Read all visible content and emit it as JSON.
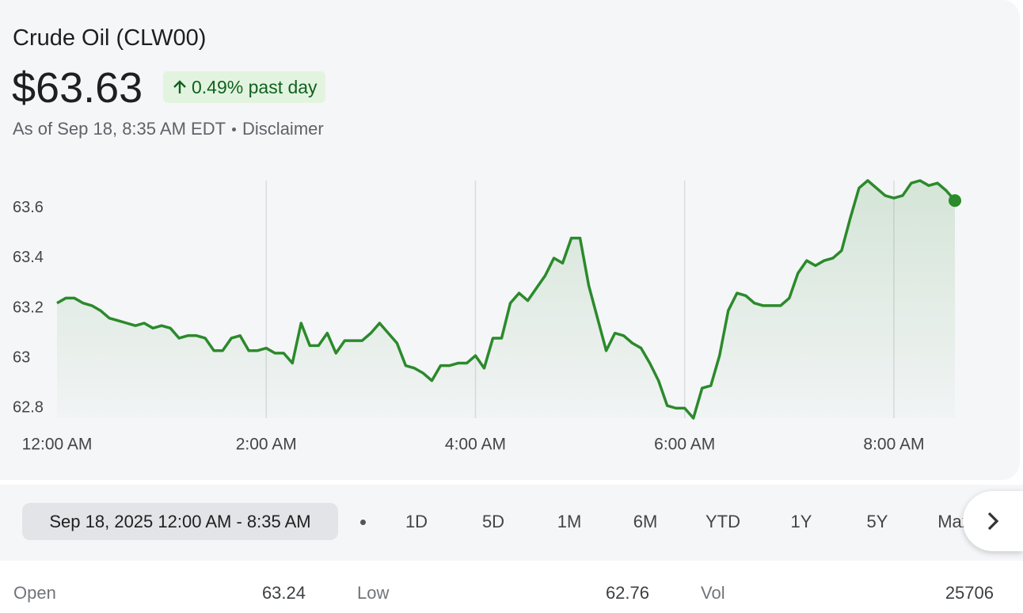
{
  "header": {
    "title": "Crude Oil (CLW00)",
    "price": "$63.63",
    "change": "0.49% past day",
    "as_of": "As of Sep 18, 8:35 AM EDT",
    "disclaimer": "Disclaimer"
  },
  "chart_data": {
    "type": "line",
    "x": [
      0,
      5,
      10,
      15,
      20,
      25,
      30,
      35,
      40,
      45,
      50,
      55,
      60,
      65,
      70,
      75,
      80,
      85,
      90,
      95,
      100,
      105,
      110,
      115,
      120,
      125,
      130,
      135,
      140,
      145,
      150,
      155,
      160,
      165,
      170,
      175,
      180,
      185,
      190,
      195,
      200,
      205,
      210,
      215,
      220,
      225,
      230,
      235,
      240,
      245,
      250,
      255,
      260,
      265,
      270,
      275,
      280,
      285,
      290,
      295,
      300,
      305,
      310,
      315,
      320,
      325,
      330,
      335,
      340,
      345,
      350,
      355,
      360,
      365,
      370,
      375,
      380,
      385,
      390,
      395,
      400,
      405,
      410,
      415,
      420,
      425,
      430,
      435,
      440,
      445,
      450,
      455,
      460,
      465,
      470,
      475,
      480,
      485,
      490,
      495,
      500,
      505,
      510,
      515
    ],
    "series": [
      {
        "color": "#2b8a2b",
        "values": [
          63.22,
          63.24,
          63.24,
          63.22,
          63.21,
          63.19,
          63.16,
          63.15,
          63.14,
          63.13,
          63.14,
          63.12,
          63.13,
          63.12,
          63.08,
          63.09,
          63.09,
          63.08,
          63.03,
          63.03,
          63.08,
          63.09,
          63.03,
          63.03,
          63.04,
          63.02,
          63.02,
          62.98,
          63.14,
          63.05,
          63.05,
          63.1,
          63.02,
          63.07,
          63.07,
          63.07,
          63.1,
          63.14,
          63.1,
          63.06,
          62.97,
          62.96,
          62.94,
          62.91,
          62.97,
          62.97,
          62.98,
          62.98,
          63.01,
          62.96,
          63.08,
          63.08,
          63.22,
          63.26,
          63.23,
          63.28,
          63.33,
          63.4,
          63.38,
          63.48,
          63.48,
          63.29,
          63.16,
          63.03,
          63.1,
          63.09,
          63.06,
          63.04,
          62.98,
          62.91,
          62.81,
          62.8,
          62.8,
          62.76,
          62.88,
          62.89,
          63.01,
          63.19,
          63.26,
          63.25,
          63.22,
          63.21,
          63.21,
          63.21,
          63.24,
          63.34,
          63.39,
          63.37,
          63.39,
          63.4,
          63.43,
          63.56,
          63.68,
          63.71,
          63.68,
          63.65,
          63.64,
          63.65,
          63.7,
          63.71,
          63.69,
          63.7,
          63.67,
          63.63
        ]
      }
    ],
    "xlim": [
      0,
      515
    ],
    "xticks": [
      {
        "value": 0,
        "label": "12:00 AM"
      },
      {
        "value": 120,
        "label": "2:00 AM"
      },
      {
        "value": 240,
        "label": "4:00 AM"
      },
      {
        "value": 360,
        "label": "6:00 AM"
      },
      {
        "value": 480,
        "label": "8:00 AM"
      }
    ],
    "ylim": [
      62.76,
      63.71
    ],
    "yticks": [
      62.8,
      63,
      63.2,
      63.4,
      63.6
    ],
    "grid": "x"
  },
  "range_selector": {
    "current": "Sep 18, 2025 12:00 AM - 8:35 AM",
    "options": [
      "1D",
      "5D",
      "1M",
      "6M",
      "YTD",
      "1Y",
      "5Y",
      "Max"
    ]
  },
  "stats": [
    {
      "label": "Open",
      "value": "63.24"
    },
    {
      "label": "Low",
      "value": "62.76"
    },
    {
      "label": "Vol",
      "value": "25706"
    }
  ]
}
